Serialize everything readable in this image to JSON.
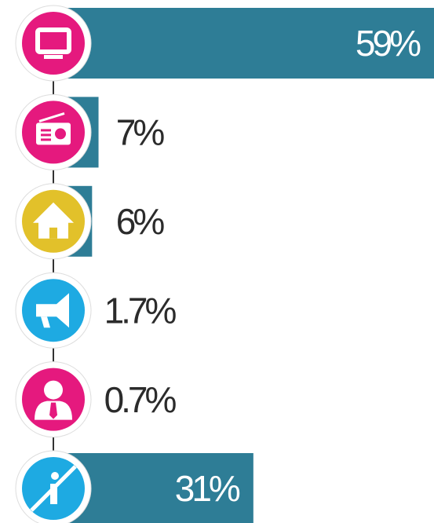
{
  "chart_data": {
    "type": "bar",
    "orientation": "horizontal",
    "categories": [
      null,
      null,
      null,
      null,
      null,
      null
    ],
    "values": [
      59,
      7,
      6,
      1.7,
      0.7,
      31
    ],
    "value_labels": [
      "59%",
      "7%",
      "6%",
      "1.7%",
      "0.7%",
      "31%"
    ],
    "color": "#2e7d96",
    "marker_colors": [
      "#e5197e",
      "#e5197e",
      "#e2c12a",
      "#1eaae2",
      "#e5197e",
      "#1eaae2"
    ]
  }
}
